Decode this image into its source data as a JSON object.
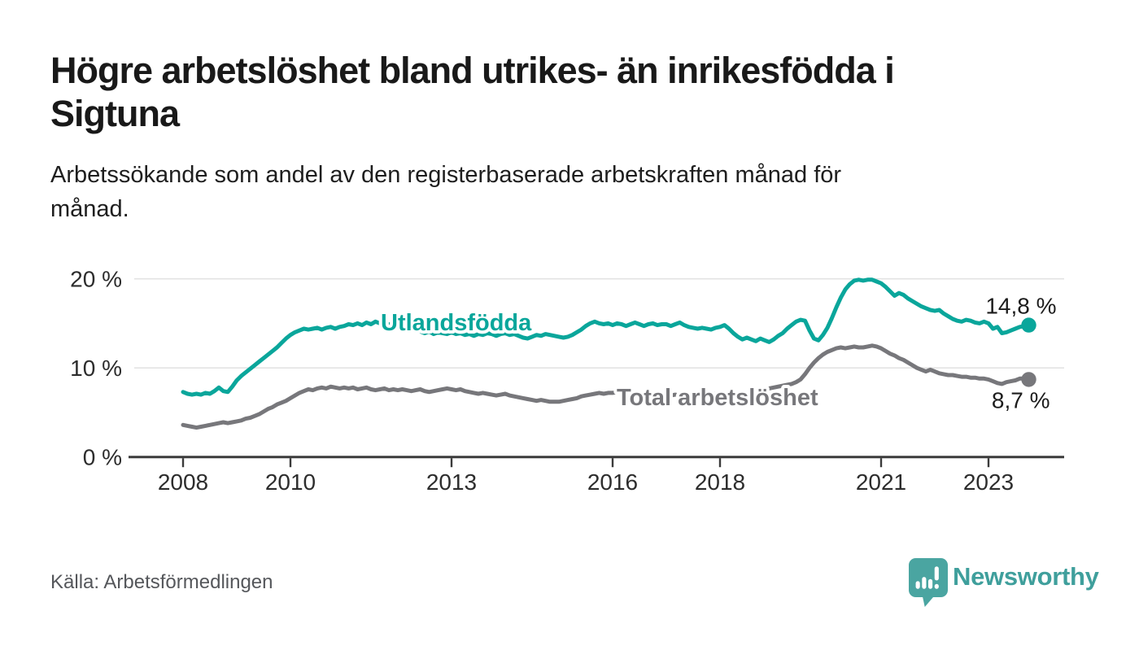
{
  "header": {
    "title_lines": [
      "Högre arbetslöshet bland utrikes- än inrikesfödda i",
      "Sigtuna"
    ],
    "subtitle_lines": [
      "Arbetssökande som andel av den registerbaserade arbetskraften månad för",
      "månad."
    ]
  },
  "footer": {
    "source": "Källa: Arbetsförmedlingen",
    "brand": "Newsworthy",
    "brand_color": "#3f9f9c",
    "brand_icon": "newsworthy-pin-barchart-icon"
  },
  "chart_data": {
    "type": "line",
    "unit": "%",
    "frequency": "monthly",
    "x_start_year": 2008,
    "x_end": "2023",
    "ylim": [
      0,
      20.5
    ],
    "grid": "horizontal",
    "legend_position": "inline-labels",
    "style": {
      "grid_color": "#e3e3e3",
      "axis_color": "#3b3b3b",
      "tick_label_color": "#2d2d2d",
      "value_label_color": "#1c1c1c",
      "halo_color": "#ffffff"
    },
    "xticks": [
      {
        "value": 2008,
        "label": "2008"
      },
      {
        "value": 2010,
        "label": "2010"
      },
      {
        "value": 2013,
        "label": "2013"
      },
      {
        "value": 2016,
        "label": "2016"
      },
      {
        "value": 2018,
        "label": "2018"
      },
      {
        "value": 2021,
        "label": "2021"
      },
      {
        "value": 2023,
        "label": "2023"
      }
    ],
    "yticks": [
      {
        "value": 0,
        "label": "0 %"
      },
      {
        "value": 10,
        "label": "10 %"
      },
      {
        "value": 20,
        "label": "20 %"
      }
    ],
    "series": [
      {
        "name": "Utlandsfödda",
        "color": "#0aa69b",
        "end_label": "14,8 %",
        "end_value": 14.8,
        "values": [
          7.3,
          7.1,
          7.0,
          7.1,
          7.0,
          7.2,
          7.1,
          7.4,
          7.8,
          7.4,
          7.3,
          7.9,
          8.6,
          9.1,
          9.5,
          9.9,
          10.3,
          10.7,
          11.1,
          11.5,
          11.9,
          12.3,
          12.8,
          13.3,
          13.7,
          14.0,
          14.2,
          14.4,
          14.3,
          14.4,
          14.5,
          14.3,
          14.5,
          14.6,
          14.4,
          14.6,
          14.7,
          14.9,
          14.8,
          15.0,
          14.8,
          15.1,
          14.9,
          15.2,
          15.0,
          14.8,
          14.9,
          14.7,
          14.5,
          14.7,
          14.4,
          14.2,
          14.3,
          14.1,
          13.9,
          14.1,
          13.8,
          14.0,
          13.9,
          13.8,
          14.0,
          13.8,
          13.9,
          13.7,
          13.8,
          13.6,
          13.8,
          13.7,
          13.9,
          13.8,
          13.6,
          13.8,
          13.9,
          13.7,
          13.8,
          13.6,
          13.4,
          13.3,
          13.5,
          13.7,
          13.6,
          13.8,
          13.7,
          13.6,
          13.5,
          13.4,
          13.5,
          13.7,
          14.0,
          14.3,
          14.7,
          15.0,
          15.2,
          15.0,
          14.9,
          15.0,
          14.8,
          15.0,
          14.9,
          14.7,
          14.9,
          15.1,
          14.9,
          14.7,
          14.9,
          15.0,
          14.8,
          14.9,
          14.9,
          14.7,
          14.9,
          15.1,
          14.8,
          14.6,
          14.5,
          14.4,
          14.5,
          14.4,
          14.3,
          14.5,
          14.6,
          14.8,
          14.4,
          13.9,
          13.5,
          13.2,
          13.4,
          13.2,
          13.0,
          13.3,
          13.1,
          12.9,
          13.2,
          13.6,
          13.9,
          14.4,
          14.8,
          15.2,
          15.4,
          15.3,
          14.2,
          13.3,
          13.1,
          13.7,
          14.5,
          15.6,
          16.8,
          17.9,
          18.8,
          19.4,
          19.8,
          19.9,
          19.8,
          19.9,
          19.9,
          19.7,
          19.5,
          19.1,
          18.6,
          18.1,
          18.4,
          18.2,
          17.8,
          17.5,
          17.2,
          16.9,
          16.7,
          16.5,
          16.4,
          16.5,
          16.1,
          15.8,
          15.5,
          15.3,
          15.2,
          15.4,
          15.3,
          15.1,
          15.0,
          15.2,
          15.0,
          14.4,
          14.6,
          13.9,
          14.0,
          14.2,
          14.4,
          14.6,
          14.7,
          14.8
        ]
      },
      {
        "name": "Total arbetslöshet",
        "color": "#77777b",
        "end_label": "8,7 %",
        "end_value": 8.7,
        "values": [
          3.6,
          3.5,
          3.4,
          3.3,
          3.4,
          3.5,
          3.6,
          3.7,
          3.8,
          3.9,
          3.8,
          3.9,
          4.0,
          4.1,
          4.3,
          4.4,
          4.6,
          4.8,
          5.1,
          5.4,
          5.6,
          5.9,
          6.1,
          6.3,
          6.6,
          6.9,
          7.2,
          7.4,
          7.6,
          7.5,
          7.7,
          7.8,
          7.7,
          7.9,
          7.8,
          7.7,
          7.8,
          7.7,
          7.8,
          7.6,
          7.7,
          7.8,
          7.6,
          7.5,
          7.6,
          7.7,
          7.5,
          7.6,
          7.5,
          7.6,
          7.5,
          7.4,
          7.5,
          7.6,
          7.4,
          7.3,
          7.4,
          7.5,
          7.6,
          7.7,
          7.6,
          7.5,
          7.6,
          7.4,
          7.3,
          7.2,
          7.1,
          7.2,
          7.1,
          7.0,
          6.9,
          7.0,
          7.1,
          6.9,
          6.8,
          6.7,
          6.6,
          6.5,
          6.4,
          6.3,
          6.4,
          6.3,
          6.2,
          6.2,
          6.2,
          6.3,
          6.4,
          6.5,
          6.6,
          6.8,
          6.9,
          7.0,
          7.1,
          7.2,
          7.1,
          7.2,
          7.2,
          7.3,
          7.2,
          7.1,
          7.2,
          7.1,
          7.0,
          7.1,
          7.0,
          6.9,
          7.0,
          7.1,
          7.0,
          6.9,
          7.0,
          6.9,
          6.8,
          6.9,
          7.0,
          6.9,
          7.0,
          7.1,
          7.0,
          7.1,
          7.0,
          7.1,
          7.2,
          7.1,
          7.2,
          7.3,
          7.2,
          7.3,
          7.4,
          7.5,
          7.6,
          7.7,
          7.8,
          7.9,
          8.0,
          8.1,
          8.2,
          8.4,
          8.7,
          9.3,
          10.0,
          10.6,
          11.1,
          11.5,
          11.8,
          12.0,
          12.2,
          12.3,
          12.2,
          12.3,
          12.4,
          12.3,
          12.3,
          12.4,
          12.5,
          12.4,
          12.2,
          11.9,
          11.6,
          11.4,
          11.1,
          10.9,
          10.6,
          10.3,
          10.0,
          9.8,
          9.6,
          9.8,
          9.6,
          9.4,
          9.3,
          9.2,
          9.2,
          9.1,
          9.0,
          9.0,
          8.9,
          8.9,
          8.8,
          8.8,
          8.7,
          8.5,
          8.3,
          8.2,
          8.4,
          8.5,
          8.6,
          8.8,
          8.8,
          8.7
        ]
      }
    ]
  }
}
